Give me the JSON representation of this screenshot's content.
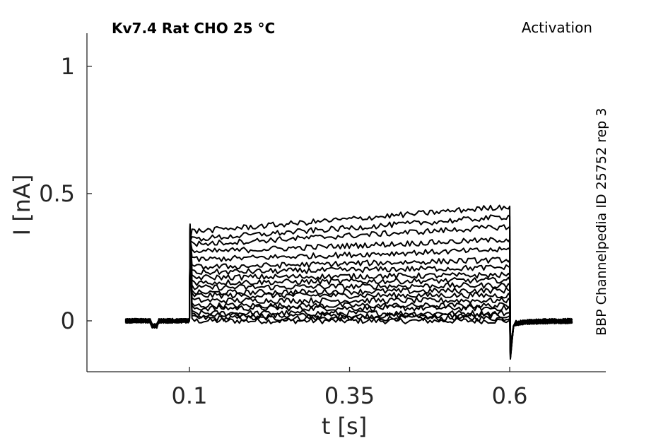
{
  "chart_data": {
    "type": "line",
    "title": "Kv7.4  Rat  CHO  25 °C",
    "protocol_label": "Activation",
    "source_label": "BBP Channelpedia ID 25752 rep 3",
    "xlabel": "t [s]",
    "ylabel": "I [nA]",
    "xlim": [
      -0.06,
      0.75
    ],
    "ylim": [
      -0.2,
      1.13
    ],
    "xticks": [
      0.1,
      0.35,
      0.6
    ],
    "xtick_labels": [
      "0.1",
      "0.35",
      "0.6"
    ],
    "yticks": [
      0,
      0.5,
      1
    ],
    "ytick_labels": [
      "0",
      "0.5",
      "1"
    ],
    "grid": false,
    "legend": "none",
    "trace_color": "#000000",
    "time": {
      "start": 0.0,
      "pulse_on": 0.1,
      "pulse_off": 0.6,
      "end": 0.7
    },
    "series": [
      {
        "start": 0.0,
        "end": 0.0
      },
      {
        "start": 0.01,
        "end": 0.01
      },
      {
        "start": 0.02,
        "end": 0.02
      },
      {
        "start": 0.03,
        "end": 0.03
      },
      {
        "start": 0.05,
        "end": 0.05
      },
      {
        "start": 0.06,
        "end": 0.06
      },
      {
        "start": 0.08,
        "end": 0.08
      },
      {
        "start": 0.1,
        "end": 0.1
      },
      {
        "start": 0.11,
        "end": 0.12
      },
      {
        "start": 0.13,
        "end": 0.14
      },
      {
        "start": 0.15,
        "end": 0.16
      },
      {
        "start": 0.17,
        "end": 0.18
      },
      {
        "start": 0.19,
        "end": 0.21
      },
      {
        "start": 0.21,
        "end": 0.24
      },
      {
        "start": 0.24,
        "end": 0.28
      },
      {
        "start": 0.27,
        "end": 0.32
      },
      {
        "start": 0.3,
        "end": 0.37
      },
      {
        "start": 0.32,
        "end": 0.41
      },
      {
        "start": 0.35,
        "end": 0.45
      }
    ]
  }
}
